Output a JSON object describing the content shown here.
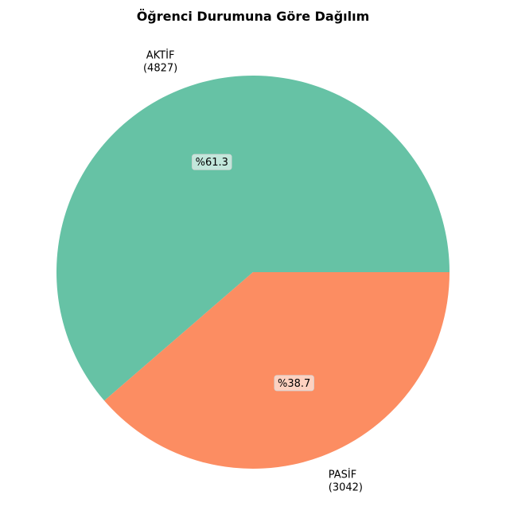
{
  "chart_data": {
    "type": "pie",
    "title": "Öğrenci Durumuna Göre Dağılım",
    "slices": [
      {
        "label": "AKTİF",
        "count_text": "(4827)",
        "value": 4827,
        "percent": 61.3,
        "percent_text": "%61.3",
        "color": "#66c2a5"
      },
      {
        "label": "PASİF",
        "count_text": "(3042)",
        "value": 3042,
        "percent": 38.7,
        "percent_text": "%38.7",
        "color": "#fc8d62"
      }
    ],
    "start_angle_deg": 0,
    "direction": "counterclockwise"
  }
}
